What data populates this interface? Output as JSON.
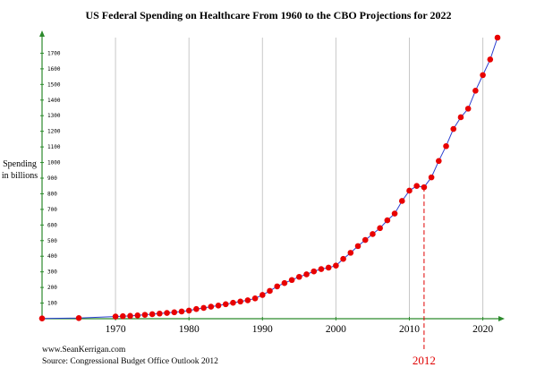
{
  "chart_data": {
    "type": "line",
    "title": "US Federal Spending on Healthcare From 1960 to the CBO Projections for 2022",
    "ylabel_lines": [
      "Spending",
      "in billions"
    ],
    "xlabel": "",
    "xlim": [
      1960,
      2022
    ],
    "ylim": [
      0,
      1800
    ],
    "x_ticks": [
      1970,
      1980,
      1990,
      2000,
      2010,
      2020
    ],
    "y_ticks": [
      100,
      200,
      300,
      400,
      500,
      600,
      700,
      800,
      900,
      1000,
      1100,
      1200,
      1300,
      1400,
      1500,
      1600,
      1700
    ],
    "grid": true,
    "legend": "none",
    "highlight": {
      "x": 2012,
      "label": "2012"
    },
    "colors": {
      "line": "#2a3fd0",
      "marker": "#e80000",
      "axis": "#2c8a2c",
      "grid": "#c8c8c8",
      "highlight": "#e00000"
    },
    "series": [
      {
        "x": [
          1960,
          1965,
          1970,
          1971,
          1972,
          1973,
          1974,
          1975,
          1976,
          1977,
          1978,
          1979,
          1980,
          1981,
          1982,
          1983,
          1984,
          1985,
          1986,
          1987,
          1988,
          1989,
          1990,
          1991,
          1992,
          1993,
          1994,
          1995,
          1996,
          1997,
          1998,
          1999,
          2000,
          2001,
          2002,
          2003,
          2004,
          2005,
          2006,
          2007,
          2008,
          2009,
          2010,
          2011,
          2012,
          2013,
          2014,
          2015,
          2016,
          2017,
          2018,
          2019,
          2020,
          2021,
          2022
        ],
        "values": [
          2,
          4,
          14,
          16,
          18,
          21,
          25,
          29,
          33,
          37,
          41,
          46,
          52,
          62,
          69,
          77,
          84,
          93,
          102,
          110,
          118,
          130,
          152,
          178,
          207,
          228,
          248,
          268,
          284,
          303,
          318,
          327,
          340,
          383,
          422,
          465,
          504,
          542,
          580,
          630,
          673,
          754,
          820,
          850,
          842,
          905,
          1010,
          1105,
          1215,
          1290,
          1345,
          1460,
          1560,
          1660,
          1800
        ]
      }
    ]
  },
  "footer": {
    "website": "www.SeanKerrigan.com",
    "source": "Source:  Congressional Budget Office Outlook 2012"
  }
}
